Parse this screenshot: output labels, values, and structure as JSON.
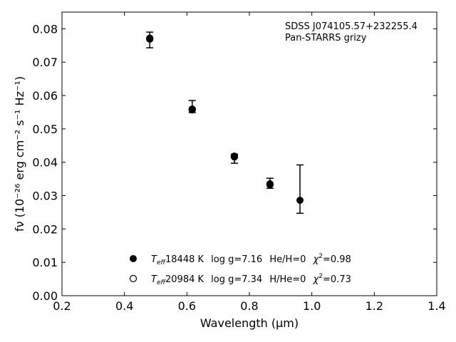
{
  "chart_data": {
    "type": "scatter",
    "xlabel": "Wavelength (μm)",
    "ylabel": "fν (10⁻²⁶ erg cm⁻² s⁻¹ Hz⁻¹)",
    "xlim": [
      0.2,
      1.4
    ],
    "ylim": [
      0.0,
      0.085
    ],
    "xticks": [
      "0.2",
      "0.4",
      "0.6",
      "0.8",
      "1.0",
      "1.2",
      "1.4"
    ],
    "yticks": [
      "0.00",
      "0.01",
      "0.02",
      "0.03",
      "0.04",
      "0.05",
      "0.06",
      "0.07",
      "0.08"
    ],
    "annotation_lines": [
      "SDSS J074105.57+232255.4",
      "Pan-STARRS grizy"
    ],
    "observed": {
      "x": [
        0.481,
        0.617,
        0.752,
        0.866,
        0.962
      ],
      "y": [
        0.0772,
        0.0559,
        0.0417,
        0.0334,
        0.0286
      ],
      "err_low": [
        0.0743,
        0.0549,
        0.0397,
        0.0322,
        0.0247
      ],
      "err_high": [
        0.079,
        0.0585,
        0.0424,
        0.0352,
        0.0392
      ]
    },
    "models": [
      {
        "marker": "filled",
        "teff": "18448 K",
        "logg": "log g=7.16",
        "comp": "He/H=0",
        "chi2": "=0.98",
        "x": [
          0.481,
          0.617,
          0.752,
          0.866
        ],
        "y": [
          0.0769,
          0.0557,
          0.0418,
          0.0335
        ]
      },
      {
        "marker": "open",
        "teff": "20984 K",
        "logg": "log g=7.34",
        "comp": "H/He=0",
        "chi2": "=0.73",
        "x": [
          0.481,
          0.617,
          0.752,
          0.866
        ],
        "y": [
          0.0771,
          0.0559,
          0.0416,
          0.0333
        ]
      }
    ],
    "legend_position": "lower-center",
    "grid": false
  }
}
